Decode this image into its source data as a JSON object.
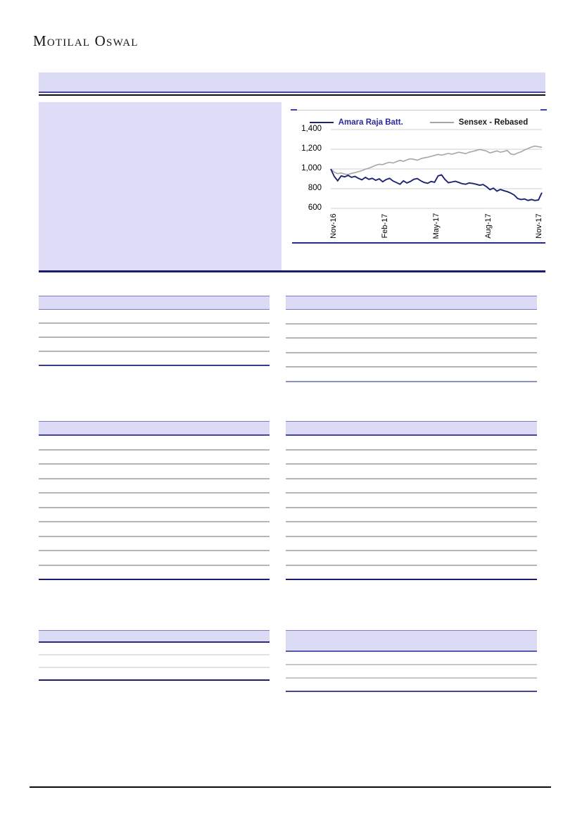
{
  "header": {
    "logo": "Motilal Oswal"
  },
  "banner": {
    "text": ""
  },
  "summary_box": {
    "text": ""
  },
  "chart_data": {
    "type": "line",
    "title": "",
    "legend_position": "top",
    "grid": true,
    "ylim": [
      600,
      1400
    ],
    "y_ticks": [
      "1,400",
      "1,200",
      "1,000",
      "800",
      "600"
    ],
    "x_ticks": [
      "Nov-16",
      "Feb-17",
      "May-17",
      "Aug-17",
      "Nov-17"
    ],
    "series": [
      {
        "name": "Amara Raja Batt.",
        "color": "#1F2472",
        "values": [
          1000,
          925,
          880,
          930,
          920,
          935,
          915,
          925,
          905,
          890,
          915,
          895,
          905,
          885,
          900,
          870,
          893,
          905,
          878,
          862,
          845,
          880,
          858,
          873,
          895,
          903,
          880,
          863,
          855,
          873,
          865,
          930,
          940,
          893,
          860,
          868,
          875,
          863,
          850,
          845,
          858,
          853,
          845,
          835,
          842,
          820,
          790,
          806,
          775,
          792,
          780,
          770,
          756,
          735,
          700,
          690,
          696,
          681,
          690,
          680,
          686,
          760
        ]
      },
      {
        "name": "Sensex - Rebased",
        "color": "#A6A6A6",
        "values": [
          1000,
          968,
          952,
          960,
          948,
          944,
          955,
          963,
          972,
          983,
          998,
          1008,
          1022,
          1038,
          1048,
          1044,
          1058,
          1068,
          1060,
          1074,
          1088,
          1078,
          1093,
          1103,
          1098,
          1088,
          1104,
          1113,
          1119,
          1128,
          1138,
          1148,
          1140,
          1149,
          1158,
          1150,
          1160,
          1170,
          1163,
          1155,
          1170,
          1178,
          1188,
          1198,
          1190,
          1182,
          1162,
          1173,
          1183,
          1170,
          1178,
          1188,
          1152,
          1146,
          1163,
          1174,
          1193,
          1208,
          1222,
          1232,
          1226,
          1220
        ]
      }
    ]
  },
  "tables": {
    "left_top": {
      "rows": 4
    },
    "right_top": {
      "rows": 5
    },
    "left_mid": {
      "rows": 10
    },
    "right_mid": {
      "rows": 10
    },
    "left_bottom": {
      "rows": 3
    },
    "right_bottom": {
      "rows": 3
    }
  },
  "colors": {
    "lavender": "#DCDBF5",
    "purple_border": "#7B7BC8",
    "navy_rule": "#1B1B6F",
    "series_navy": "#1F2472",
    "series_gray": "#A6A6A6",
    "gridline": "#D9D9D9",
    "row_separator": "#B5B5B5"
  }
}
